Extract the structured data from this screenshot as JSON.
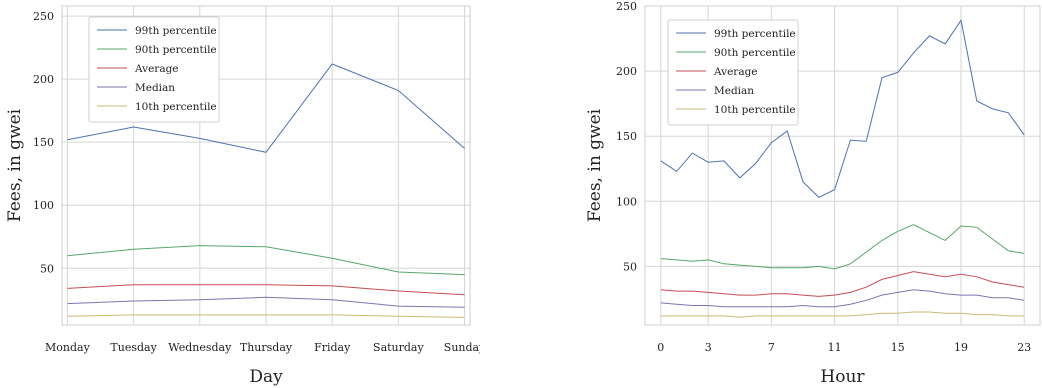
{
  "chart_data": [
    {
      "type": "line",
      "xlabel": "Day",
      "ylabel": "Fees, in gwei",
      "ylim": [
        5,
        258
      ],
      "yticks": [
        50,
        100,
        150,
        200,
        250
      ],
      "categories": [
        "Monday",
        "Tuesday",
        "Wednesday",
        "Thursday",
        "Friday",
        "Saturday",
        "Sunday"
      ],
      "grid": true,
      "legend_position": "top-left",
      "series": [
        {
          "name": "99th percentile",
          "color": "#4c72b0",
          "values": [
            152,
            162,
            153,
            142,
            212,
            191,
            145
          ]
        },
        {
          "name": "90th percentile",
          "color": "#55a868",
          "values": [
            60,
            65,
            68,
            67,
            58,
            47,
            45
          ]
        },
        {
          "name": "Average",
          "color": "#c44e52",
          "values": [
            34,
            37,
            37,
            37,
            36,
            32,
            29
          ]
        },
        {
          "name": "Median",
          "color": "#8172b2",
          "values": [
            22,
            24,
            25,
            27,
            25,
            20,
            19
          ]
        },
        {
          "name": "10th percentile",
          "color": "#ccb974",
          "values": [
            12,
            13,
            13,
            13,
            13,
            12,
            11
          ]
        }
      ]
    },
    {
      "type": "line",
      "xlabel": "Hour",
      "ylabel": "Fees, in gwei",
      "ylim": [
        5,
        250
      ],
      "yticks": [
        50,
        100,
        150,
        200,
        250
      ],
      "x": [
        0,
        1,
        2,
        3,
        4,
        5,
        6,
        7,
        8,
        9,
        10,
        11,
        12,
        13,
        14,
        15,
        16,
        17,
        18,
        19,
        20,
        21,
        22,
        23
      ],
      "xlim": [
        -1,
        24
      ],
      "xticks": [
        0,
        3,
        7,
        11,
        15,
        19,
        23
      ],
      "grid": true,
      "legend_position": "top-left",
      "series": [
        {
          "name": "99th percentile",
          "color": "#4c72b0",
          "values": [
            131,
            123,
            137,
            130,
            131,
            118,
            129,
            145,
            154,
            115,
            103,
            109,
            147,
            146,
            195,
            199,
            214,
            227,
            221,
            239,
            177,
            171,
            168,
            151
          ]
        },
        {
          "name": "90th percentile",
          "color": "#55a868",
          "values": [
            56,
            55,
            54,
            55,
            52,
            51,
            50,
            49,
            49,
            49,
            50,
            48,
            52,
            61,
            70,
            77,
            82,
            76,
            70,
            81,
            80,
            71,
            62,
            60
          ]
        },
        {
          "name": "Average",
          "color": "#c44e52",
          "values": [
            32,
            31,
            31,
            30,
            29,
            28,
            28,
            29,
            29,
            28,
            27,
            28,
            30,
            34,
            40,
            43,
            46,
            44,
            42,
            44,
            42,
            38,
            36,
            34
          ]
        },
        {
          "name": "Median",
          "color": "#8172b2",
          "values": [
            22,
            21,
            20,
            20,
            19,
            19,
            19,
            19,
            19,
            20,
            19,
            19,
            21,
            24,
            28,
            30,
            32,
            31,
            29,
            28,
            28,
            26,
            26,
            24
          ]
        },
        {
          "name": "10th percentile",
          "color": "#ccb974",
          "values": [
            12,
            12,
            12,
            12,
            12,
            11,
            12,
            12,
            12,
            12,
            12,
            12,
            12,
            13,
            14,
            14,
            15,
            15,
            14,
            14,
            13,
            13,
            12,
            12
          ]
        }
      ]
    }
  ]
}
